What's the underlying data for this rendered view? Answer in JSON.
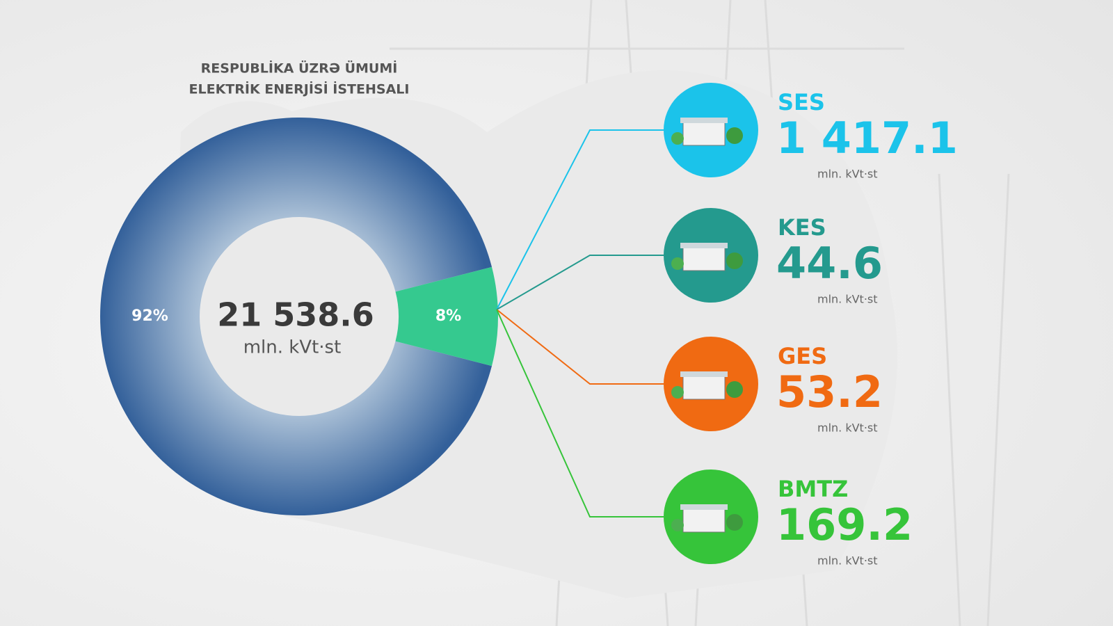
{
  "chart_data": {
    "type": "pie",
    "title_lines": [
      "RESPUBLİKA ÜZRƏ ÜMUMİ",
      "ELEKTRİK ENERJİSİ İSTEHSALI"
    ],
    "values": [
      92,
      8
    ],
    "value_labels": [
      "92%",
      "8%"
    ],
    "colors": [
      "#3d6a9c",
      "#35c98f"
    ],
    "total": "21 538.6",
    "unit": "mln. kVt·st",
    "breakdown": [
      {
        "name": "SES",
        "value": "1 417.1",
        "color": "#1bc3ea"
      },
      {
        "name": "KES",
        "value": "44.6",
        "color": "#249a8e"
      },
      {
        "name": "GES",
        "value": "53.2",
        "color": "#f06a12"
      },
      {
        "name": "BMTZ",
        "value": "169.2",
        "color": "#36c43a"
      }
    ]
  }
}
